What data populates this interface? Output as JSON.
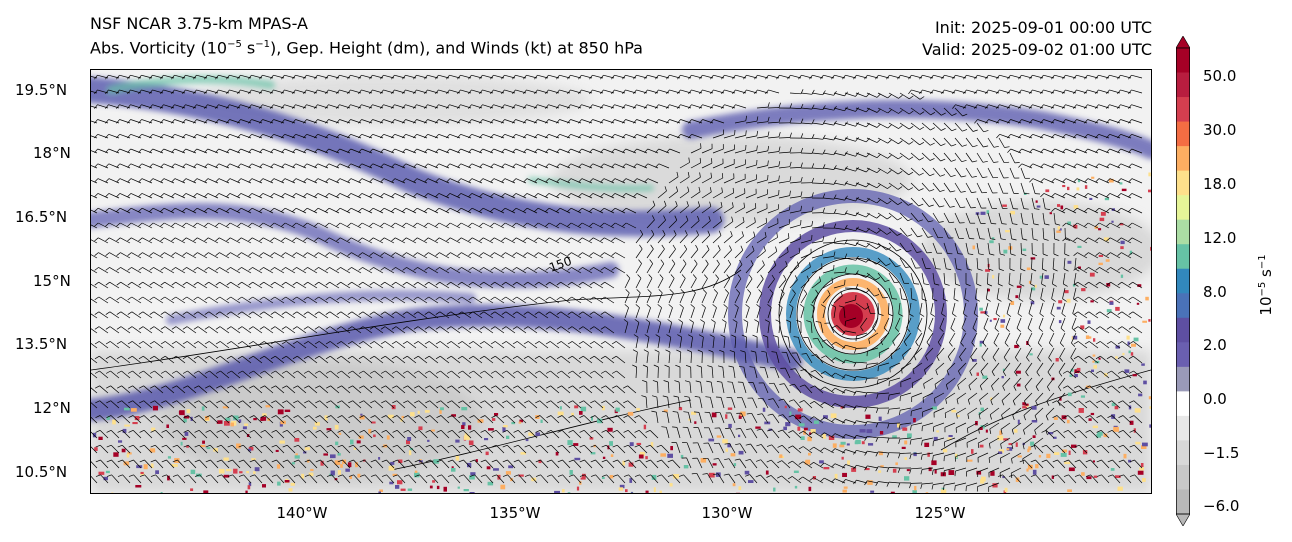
{
  "header": {
    "model": "NSF NCAR 3.75-km MPAS-A",
    "field_main": "Abs. Vorticity (10",
    "field_exp1": "−5",
    "field_mid": " s",
    "field_exp2": "−1",
    "field_rest": "), Gep. Height (dm), and Winds (kt) at 850 hPa",
    "init": "Init: 2025-09-01 00:00 UTC",
    "valid": "Valid: 2025-09-02 01:00 UTC"
  },
  "axes": {
    "lat_labels": [
      "19.5°N",
      "18°N",
      "16.5°N",
      "15°N",
      "13.5°N",
      "12°N",
      "10.5°N"
    ],
    "lon_labels": [
      "140°W",
      "135°W",
      "130°W",
      "125°W"
    ]
  },
  "colorbar": {
    "labels": [
      "50.0",
      "30.0",
      "18.0",
      "12.0",
      "8.0",
      "2.0",
      "0.0",
      "−1.5",
      "−6.0"
    ],
    "unit_base": "10",
    "unit_exp1": "−5",
    "unit_mid": " s",
    "unit_exp2": "−1",
    "colors": [
      "#a50026",
      "#b81d3f",
      "#d53e4f",
      "#f46d43",
      "#fdae61",
      "#fee08b",
      "#e6f598",
      "#abdda4",
      "#66c2a5",
      "#3288bd",
      "#4a72b8",
      "#5e4fa2",
      "#6a5fb0",
      "#9a9ab8",
      "#ffffff",
      "#e8e8e8",
      "#d8d8d8",
      "#c8c8c8",
      "#b8b8b8"
    ]
  },
  "map_data": {
    "storm_center": {
      "lat": 14.3,
      "lon": -126.9
    },
    "contour_labels": [
      "150"
    ]
  }
}
